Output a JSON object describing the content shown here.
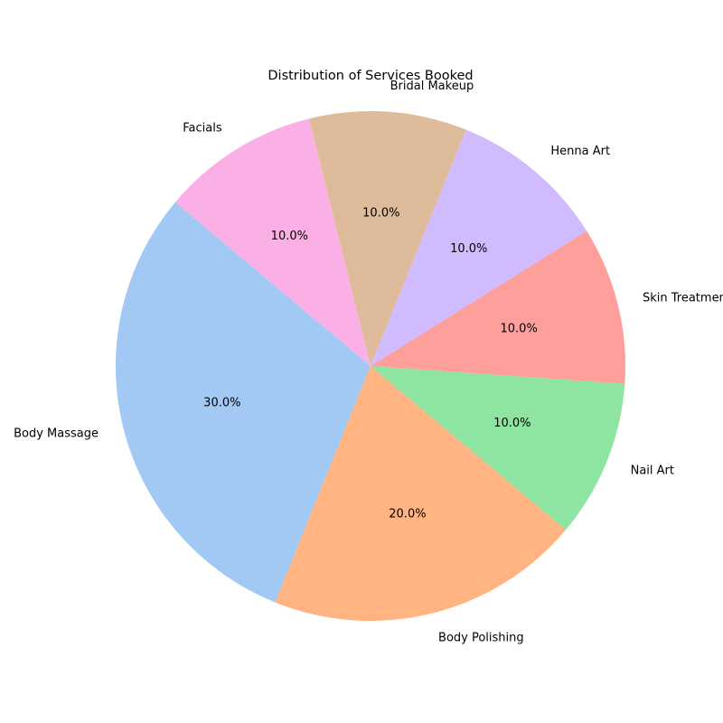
{
  "chart_data": {
    "type": "pie",
    "title": "Distribution of Services Booked",
    "categories": [
      "Body Massage",
      "Body Polishing",
      "Nail Art",
      "Skin Treatment",
      "Henna Art",
      "Bridal Makeup",
      "Facials"
    ],
    "values": [
      30,
      20,
      10,
      10,
      10,
      10,
      10
    ],
    "percent_labels": [
      "30.0%",
      "20.0%",
      "10.0%",
      "10.0%",
      "10.0%",
      "10.0%",
      "10.0%"
    ],
    "colors": [
      "#a1c9f4",
      "#ffb482",
      "#8de5a1",
      "#ff9f9b",
      "#d0bbff",
      "#debb9b",
      "#fab0e4"
    ],
    "start_angle_deg": 140,
    "direction": "counterclockwise"
  }
}
